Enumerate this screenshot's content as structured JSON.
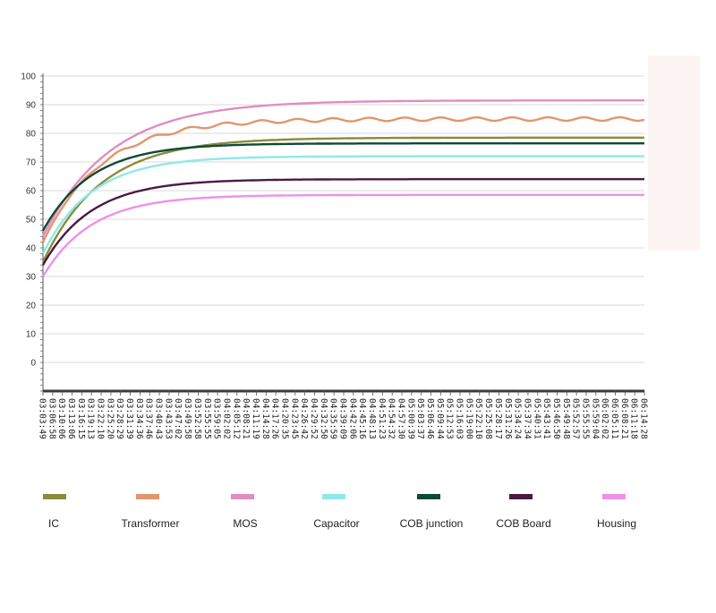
{
  "chart_data": {
    "type": "line",
    "title": "",
    "xlabel": "",
    "ylabel": "",
    "ylim": [
      -10,
      100
    ],
    "yticks": [
      0,
      10,
      20,
      30,
      40,
      50,
      60,
      70,
      80,
      90,
      100
    ],
    "grid": true,
    "legend_placement": "bottom",
    "x": [
      "03:03:49",
      "03:06:58",
      "03:10:06",
      "03:13:06",
      "03:16:15",
      "03:19:13",
      "03:22:10",
      "03:25:20",
      "03:28:29",
      "03:31:39",
      "03:34:36",
      "03:37:46",
      "03:40:43",
      "03:43:53",
      "03:47:02",
      "03:49:58",
      "03:52:58",
      "03:55:55",
      "03:59:05",
      "04:02:02",
      "04:05:12",
      "04:08:21",
      "04:11:19",
      "04:14:28",
      "04:17:26",
      "04:20:35",
      "04:23:45",
      "04:26:42",
      "04:29:52",
      "04:32:50",
      "04:35:59",
      "04:39:09",
      "04:42:06",
      "04:45:16",
      "04:48:13",
      "04:51:23",
      "04:54:32",
      "04:57:30",
      "05:00:39",
      "05:03:37",
      "05:06:46",
      "05:09:44",
      "05:12:53",
      "05:16:03",
      "05:19:00",
      "05:22:10",
      "05:25:08",
      "05:28:17",
      "05:31:26",
      "05:34:24",
      "05:37:34",
      "05:40:31",
      "05:43:41",
      "05:46:50",
      "05:49:48",
      "05:52:57",
      "05:55:55",
      "05:59:04",
      "06:02:02",
      "06:05:11",
      "06:08:21",
      "06:11:18",
      "06:14:28"
    ],
    "series": [
      {
        "name": "IC",
        "color": "#8b8b3a",
        "start": 35,
        "end": 78.5,
        "tau": 6
      },
      {
        "name": "Transformer",
        "color": "#e3956d",
        "start": 42,
        "end": 85,
        "tau": 6,
        "wiggle": 0.6
      },
      {
        "name": "MOS",
        "color": "#e08ec0",
        "start": 44,
        "end": 91.5,
        "tau": 7
      },
      {
        "name": "Capacitor",
        "color": "#8fe8e8",
        "start": 38,
        "end": 72,
        "tau": 5
      },
      {
        "name": "COB  junction",
        "color": "#0f4a35",
        "start": 46,
        "end": 76.5,
        "tau": 5
      },
      {
        "name": "COB Board",
        "color": "#4a1a45",
        "start": 34,
        "end": 64,
        "tau": 5
      },
      {
        "name": "Housing",
        "color": "#f090e8",
        "start": 30,
        "end": 58.5,
        "tau": 5
      }
    ],
    "colors": {
      "grid": "#d9d9d9",
      "axis": "#555555",
      "baseline": "#3a3a3a",
      "right_panel": "#fdf5f3"
    }
  }
}
